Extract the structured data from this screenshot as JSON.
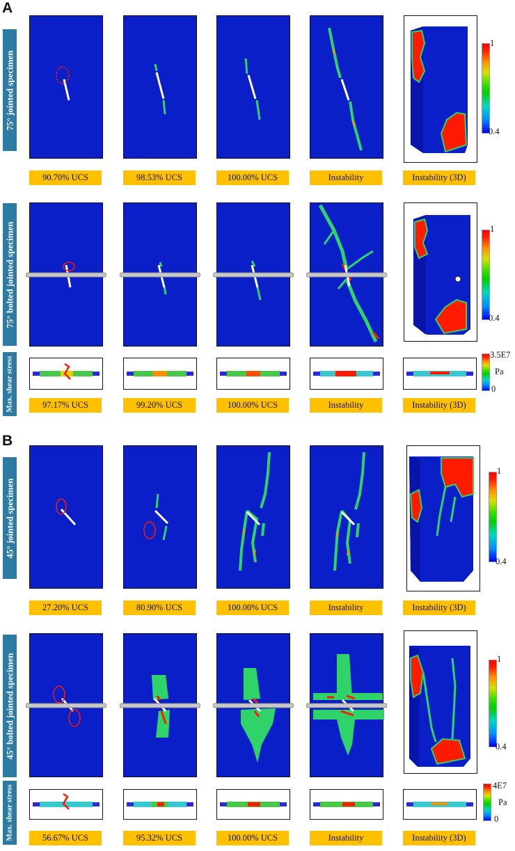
{
  "panels": [
    {
      "letter": "A"
    },
    {
      "letter": "B"
    }
  ],
  "rows": {
    "a_jointed": {
      "label": "75° jointed specimen",
      "stages": [
        "90.70% UCS",
        "98.53% UCS",
        "100.00% UCS",
        "Instability",
        "Instability (3D)"
      ],
      "colorbar": {
        "max": "1",
        "min": "0.4"
      }
    },
    "a_bolted": {
      "label": "75° bolted jointed specimen",
      "colorbar": {
        "max": "1",
        "min": "0.4"
      }
    },
    "a_shear": {
      "label": "Max. shear stress",
      "stages": [
        "97.17% UCS",
        "99.20% UCS",
        "100.00% UCS",
        "Instability",
        "Instability (3D)"
      ],
      "colorbar": {
        "max": "3.5E7",
        "unit": "Pa",
        "min": "0"
      }
    },
    "b_jointed": {
      "label": "45° jointed specimen",
      "stages": [
        "27.20% UCS",
        "80.90% UCS",
        "100.00% UCS",
        "Instability",
        "Instability (3D)"
      ],
      "colorbar": {
        "max": "1",
        "min": "0.4"
      }
    },
    "b_bolted": {
      "label": "45° bolted jointed specimen",
      "colorbar": {
        "max": "1",
        "min": "0.4"
      }
    },
    "b_shear": {
      "label": "Max. shear stress",
      "stages": [
        "56.67% UCS",
        "95.32% UCS",
        "100.00% UCS",
        "Instability",
        "Instability (3D)"
      ],
      "colorbar": {
        "max": "4E7",
        "unit": "Pa",
        "min": "0"
      }
    }
  },
  "colors": {
    "specimen_blue": "#0a1fc8",
    "crack_green": "#2fd36a",
    "crack_red": "#ff1a00",
    "label_bar": "#2d7aa3",
    "ucs_tag": "#ffc000"
  }
}
